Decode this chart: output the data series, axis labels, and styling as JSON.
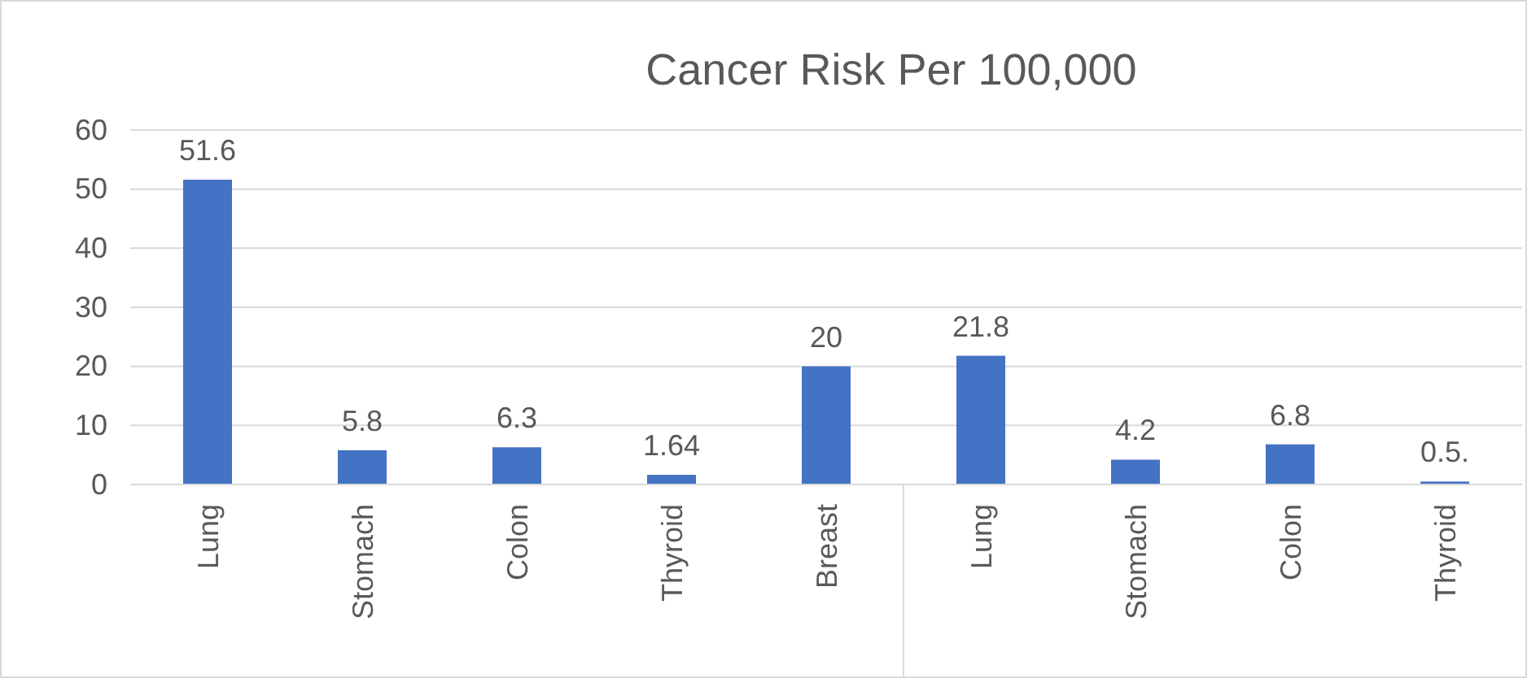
{
  "chart_data": {
    "type": "bar",
    "title": "Cancer Risk Per 100,000",
    "categories": [
      "Lung",
      "Stomach",
      "Colon",
      "Thyroid",
      "Breast",
      "Lung",
      "Stomach",
      "Colon",
      "Thyroid"
    ],
    "values": [
      51.6,
      5.8,
      6.3,
      1.64,
      20,
      21.8,
      4.2,
      6.8,
      0.5
    ],
    "value_labels": [
      "51.6",
      "5.8",
      "6.3",
      "1.64",
      "20",
      "21.8",
      "4.2",
      "6.8",
      "0.5."
    ],
    "color": "#4472c4",
    "ylim": [
      0,
      60
    ],
    "yticks": [
      0,
      10,
      20,
      30,
      40,
      50,
      60
    ],
    "grid": "y"
  }
}
